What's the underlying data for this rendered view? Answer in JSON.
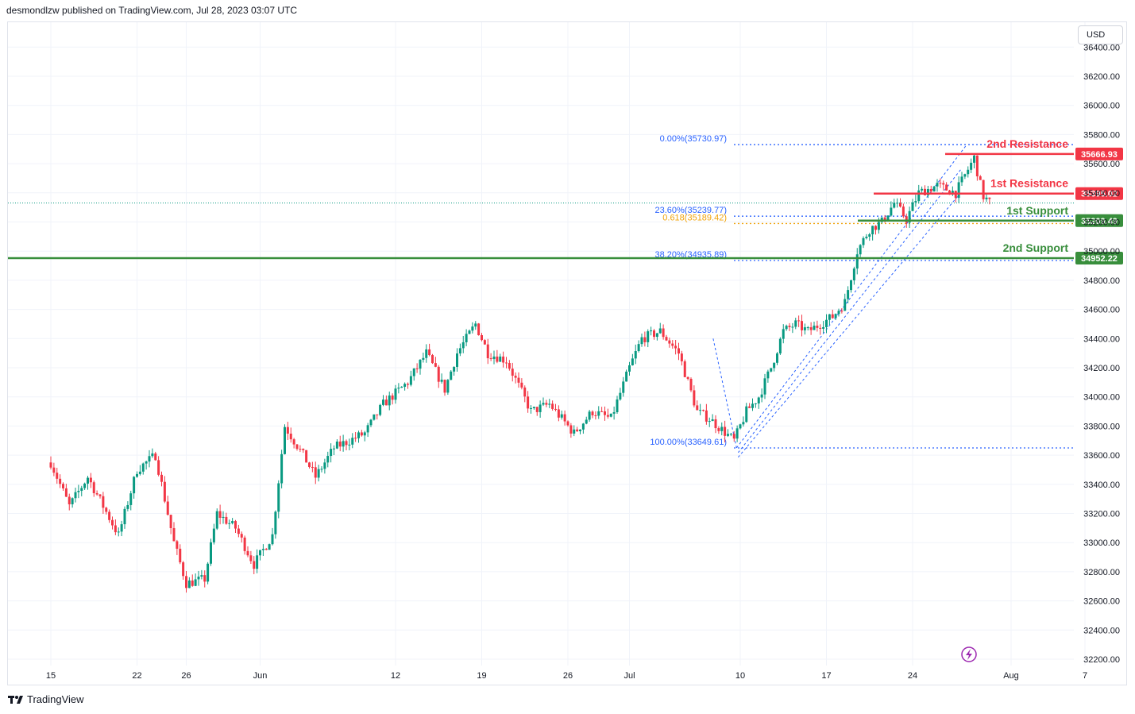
{
  "header": {
    "publisher_text": "desmondlzw published on TradingView.com, Jul 28, 2023 03:07 UTC"
  },
  "footer": {
    "brand": "TradingView"
  },
  "price_scale": {
    "currency": "USD"
  },
  "chart_data": {
    "type": "candlestick",
    "y_ticks": [
      36400,
      36200,
      36000,
      35800,
      35600,
      35400,
      35200,
      35000,
      34800,
      34600,
      34400,
      34200,
      34000,
      33800,
      33600,
      33400,
      33200,
      33000,
      32800,
      32600,
      32400,
      32200
    ],
    "y_tick_labels": [
      "36400.00",
      "36200.00",
      "36000.00",
      "35800.00",
      "35600.00",
      "35400.00",
      "35200.00",
      "35000.00",
      "34800.00",
      "34600.00",
      "34400.00",
      "34200.00",
      "34000.00",
      "33800.00",
      "33600.00",
      "33400.00",
      "33200.00",
      "33000.00",
      "32800.00",
      "32600.00",
      "32400.00",
      "32200.00"
    ],
    "x_ticks": [
      {
        "label": "15",
        "day": 0
      },
      {
        "label": "22",
        "day": 7
      },
      {
        "label": "26",
        "day": 11
      },
      {
        "label": "Jun",
        "day": 17
      },
      {
        "label": "12",
        "day": 28
      },
      {
        "label": "19",
        "day": 35
      },
      {
        "label": "26",
        "day": 42
      },
      {
        "label": "Jul",
        "day": 47
      },
      {
        "label": "10",
        "day": 56
      },
      {
        "label": "17",
        "day": 63
      },
      {
        "label": "24",
        "day": 70
      },
      {
        "label": "Aug",
        "day": 78
      },
      {
        "label": "7",
        "day": 84
      }
    ],
    "fibonacci": [
      {
        "label": "0.00%(35730.97)",
        "price": 35730.97,
        "color": "#2962ff"
      },
      {
        "label": "23.60%(35239.77)",
        "price": 35239.77,
        "color": "#2962ff"
      },
      {
        "label": "0.618(35189.42)",
        "price": 35189.42,
        "color": "#f0a30a"
      },
      {
        "label": "38.20%(34935.89)",
        "price": 34935.89,
        "color": "#2962ff"
      },
      {
        "label": "100.00%(33649.61)",
        "price": 33649.61,
        "color": "#2962ff"
      }
    ],
    "levels": [
      {
        "name": "2nd Resistance",
        "price": 35666.93,
        "label": "35666.93",
        "color": "#f23645"
      },
      {
        "name": "1st Resistance",
        "price": 35395.02,
        "label": "35395.02",
        "color": "#f23645"
      },
      {
        "name": "1st Support",
        "price": 35209.49,
        "label": "35209.49",
        "color": "#388e3c"
      },
      {
        "name": "2nd Support",
        "price": 34952.22,
        "label": "34952.22",
        "color": "#388e3c"
      }
    ],
    "last_price": 35330,
    "colors": {
      "up": "#089981",
      "down": "#f23645",
      "grid": "#f0f3fa"
    },
    "anchors": [
      {
        "day": 0,
        "price": 33550
      },
      {
        "day": 1.5,
        "price": 33250
      },
      {
        "day": 3,
        "price": 33450
      },
      {
        "day": 5.5,
        "price": 33050
      },
      {
        "day": 7,
        "price": 33500
      },
      {
        "day": 8.5,
        "price": 33600
      },
      {
        "day": 10,
        "price": 33000
      },
      {
        "day": 11,
        "price": 32720
      },
      {
        "day": 12.5,
        "price": 32750
      },
      {
        "day": 13.5,
        "price": 33200
      },
      {
        "day": 15,
        "price": 33100
      },
      {
        "day": 16.5,
        "price": 32850
      },
      {
        "day": 18,
        "price": 33050
      },
      {
        "day": 19,
        "price": 33800
      },
      {
        "day": 20.5,
        "price": 33600
      },
      {
        "day": 21.5,
        "price": 33450
      },
      {
        "day": 23,
        "price": 33650
      },
      {
        "day": 25.5,
        "price": 33750
      },
      {
        "day": 27,
        "price": 33950
      },
      {
        "day": 29,
        "price": 34100
      },
      {
        "day": 30.5,
        "price": 34300
      },
      {
        "day": 32,
        "price": 34050
      },
      {
        "day": 33,
        "price": 34300
      },
      {
        "day": 34.5,
        "price": 34500
      },
      {
        "day": 35.5,
        "price": 34300
      },
      {
        "day": 37,
        "price": 34250
      },
      {
        "day": 39,
        "price": 33900
      },
      {
        "day": 40.5,
        "price": 33950
      },
      {
        "day": 42.5,
        "price": 33750
      },
      {
        "day": 44,
        "price": 33900
      },
      {
        "day": 45.5,
        "price": 33850
      },
      {
        "day": 47,
        "price": 34200
      },
      {
        "day": 48,
        "price": 34400
      },
      {
        "day": 49.5,
        "price": 34450
      },
      {
        "day": 51,
        "price": 34300
      },
      {
        "day": 52.5,
        "price": 33900
      },
      {
        "day": 53.5,
        "price": 33850
      },
      {
        "day": 55.5,
        "price": 33700
      },
      {
        "day": 56.5,
        "price": 33900
      },
      {
        "day": 57.5,
        "price": 34000
      },
      {
        "day": 58.5,
        "price": 34200
      },
      {
        "day": 59.5,
        "price": 34450
      },
      {
        "day": 60.5,
        "price": 34500
      },
      {
        "day": 61.5,
        "price": 34450
      },
      {
        "day": 62.5,
        "price": 34500
      },
      {
        "day": 63.5,
        "price": 34550
      },
      {
        "day": 64.5,
        "price": 34650
      },
      {
        "day": 65.5,
        "price": 35000
      },
      {
        "day": 66.5,
        "price": 35150
      },
      {
        "day": 67.5,
        "price": 35200
      },
      {
        "day": 68.5,
        "price": 35330
      },
      {
        "day": 69.5,
        "price": 35220
      },
      {
        "day": 70.5,
        "price": 35400
      },
      {
        "day": 72,
        "price": 35450
      },
      {
        "day": 73.5,
        "price": 35400
      },
      {
        "day": 75,
        "price": 35640
      },
      {
        "day": 75.7,
        "price": 35380
      },
      {
        "day": 76.3,
        "price": 35330
      }
    ]
  }
}
